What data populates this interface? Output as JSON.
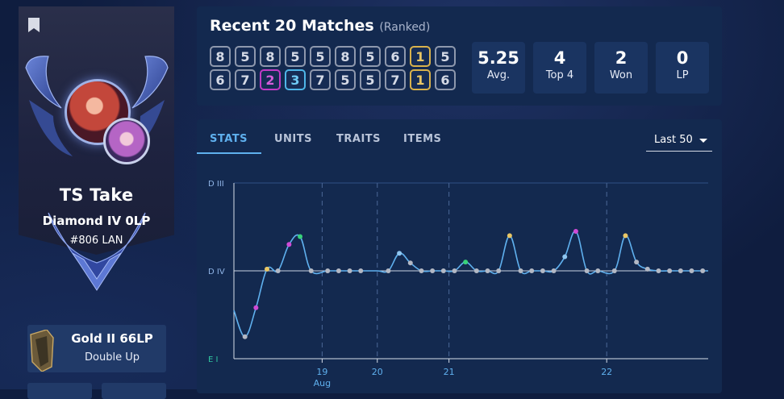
{
  "profile": {
    "name": "TS Take",
    "rank": "Diamond IV 0LP",
    "ladder": "#806 LAN"
  },
  "double_up": {
    "rank": "Gold II 66LP",
    "mode": "Double Up"
  },
  "recent": {
    "title": "Recent 20 Matches",
    "subtitle": "(Ranked)",
    "placements": [
      {
        "value": "8",
        "tone": "grey"
      },
      {
        "value": "5",
        "tone": "grey"
      },
      {
        "value": "8",
        "tone": "grey"
      },
      {
        "value": "5",
        "tone": "grey"
      },
      {
        "value": "5",
        "tone": "grey"
      },
      {
        "value": "8",
        "tone": "grey"
      },
      {
        "value": "5",
        "tone": "grey"
      },
      {
        "value": "6",
        "tone": "grey"
      },
      {
        "value": "1",
        "tone": "gold"
      },
      {
        "value": "5",
        "tone": "grey"
      },
      {
        "value": "6",
        "tone": "grey"
      },
      {
        "value": "7",
        "tone": "grey"
      },
      {
        "value": "2",
        "tone": "pink"
      },
      {
        "value": "3",
        "tone": "blue"
      },
      {
        "value": "7",
        "tone": "grey"
      },
      {
        "value": "5",
        "tone": "grey"
      },
      {
        "value": "5",
        "tone": "grey"
      },
      {
        "value": "7",
        "tone": "grey"
      },
      {
        "value": "1",
        "tone": "gold"
      },
      {
        "value": "6",
        "tone": "grey"
      }
    ],
    "stats": [
      {
        "value": "5.25",
        "label": "Avg."
      },
      {
        "value": "4",
        "label": "Top 4"
      },
      {
        "value": "2",
        "label": "Won"
      },
      {
        "value": "0",
        "label": "LP"
      }
    ]
  },
  "tabs": [
    "STATS",
    "UNITS",
    "TRAITS",
    "ITEMS"
  ],
  "active_tab": "STATS",
  "range_select": "Last 50",
  "colors": {
    "gold": "#e9c665",
    "pink": "#d04bd6",
    "blue": "#8fc6f0",
    "green": "#38d27a",
    "grey": "#b3b8c4",
    "line": "#5fb0ee",
    "teal_label": "#30c6a0"
  },
  "chart_data": {
    "type": "line",
    "y_tick_labels": [
      "D III",
      "D IV",
      "E I"
    ],
    "x_tick_labels": [
      {
        "x": 8,
        "label": "19",
        "sub": "Aug"
      },
      {
        "x": 13,
        "label": "20"
      },
      {
        "x": 19.5,
        "label": "21"
      },
      {
        "x": 33.8,
        "label": "22"
      }
    ],
    "xlim": [
      0,
      43
    ],
    "ylim": [
      -100,
      100
    ],
    "grid": "horizontal + dashed day lines",
    "series": [
      {
        "points": [
          {
            "x": 0.0,
            "y": -45,
            "dot": "none"
          },
          {
            "x": 1.0,
            "y": -75,
            "dot": "grey"
          },
          {
            "x": 2.0,
            "y": -42,
            "dot": "pink"
          },
          {
            "x": 3.0,
            "y": 2,
            "dot": "gold"
          },
          {
            "x": 4.0,
            "y": 0,
            "dot": "grey"
          },
          {
            "x": 5.0,
            "y": 30,
            "dot": "pink"
          },
          {
            "x": 6.0,
            "y": 39,
            "dot": "green"
          },
          {
            "x": 7.0,
            "y": 0,
            "dot": "grey"
          },
          {
            "x": 8.5,
            "y": 0,
            "dot": "grey"
          },
          {
            "x": 9.5,
            "y": 0,
            "dot": "grey"
          },
          {
            "x": 10.5,
            "y": 0,
            "dot": "grey"
          },
          {
            "x": 11.5,
            "y": 0,
            "dot": "grey"
          },
          {
            "x": 13.0,
            "y": 0,
            "dot": "none"
          },
          {
            "x": 14.0,
            "y": 0,
            "dot": "grey"
          },
          {
            "x": 15.0,
            "y": 20,
            "dot": "blue"
          },
          {
            "x": 16.0,
            "y": 9,
            "dot": "grey"
          },
          {
            "x": 17.0,
            "y": 0,
            "dot": "grey"
          },
          {
            "x": 18.0,
            "y": 0,
            "dot": "grey"
          },
          {
            "x": 19.0,
            "y": 0,
            "dot": "grey"
          },
          {
            "x": 20.0,
            "y": 0,
            "dot": "grey"
          },
          {
            "x": 21.0,
            "y": 10,
            "dot": "green"
          },
          {
            "x": 22.0,
            "y": 0,
            "dot": "grey"
          },
          {
            "x": 23.0,
            "y": 0,
            "dot": "grey"
          },
          {
            "x": 24.0,
            "y": 0,
            "dot": "grey"
          },
          {
            "x": 25.0,
            "y": 40,
            "dot": "gold"
          },
          {
            "x": 26.0,
            "y": 0,
            "dot": "grey"
          },
          {
            "x": 27.0,
            "y": 0,
            "dot": "grey"
          },
          {
            "x": 28.0,
            "y": 0,
            "dot": "grey"
          },
          {
            "x": 29.0,
            "y": 0,
            "dot": "grey"
          },
          {
            "x": 30.0,
            "y": 16,
            "dot": "blue"
          },
          {
            "x": 31.0,
            "y": 45,
            "dot": "pink"
          },
          {
            "x": 32.0,
            "y": 0,
            "dot": "grey"
          },
          {
            "x": 33.0,
            "y": 0,
            "dot": "grey"
          },
          {
            "x": 34.5,
            "y": 0,
            "dot": "grey"
          },
          {
            "x": 35.5,
            "y": 40,
            "dot": "gold"
          },
          {
            "x": 36.5,
            "y": 10,
            "dot": "grey"
          },
          {
            "x": 37.5,
            "y": 2,
            "dot": "grey"
          },
          {
            "x": 38.5,
            "y": 0,
            "dot": "grey"
          },
          {
            "x": 39.5,
            "y": 0,
            "dot": "grey"
          },
          {
            "x": 40.5,
            "y": 0,
            "dot": "grey"
          },
          {
            "x": 41.5,
            "y": 0,
            "dot": "grey"
          },
          {
            "x": 42.5,
            "y": 0,
            "dot": "grey"
          },
          {
            "x": 43.0,
            "y": 0,
            "dot": "none"
          }
        ]
      }
    ]
  }
}
